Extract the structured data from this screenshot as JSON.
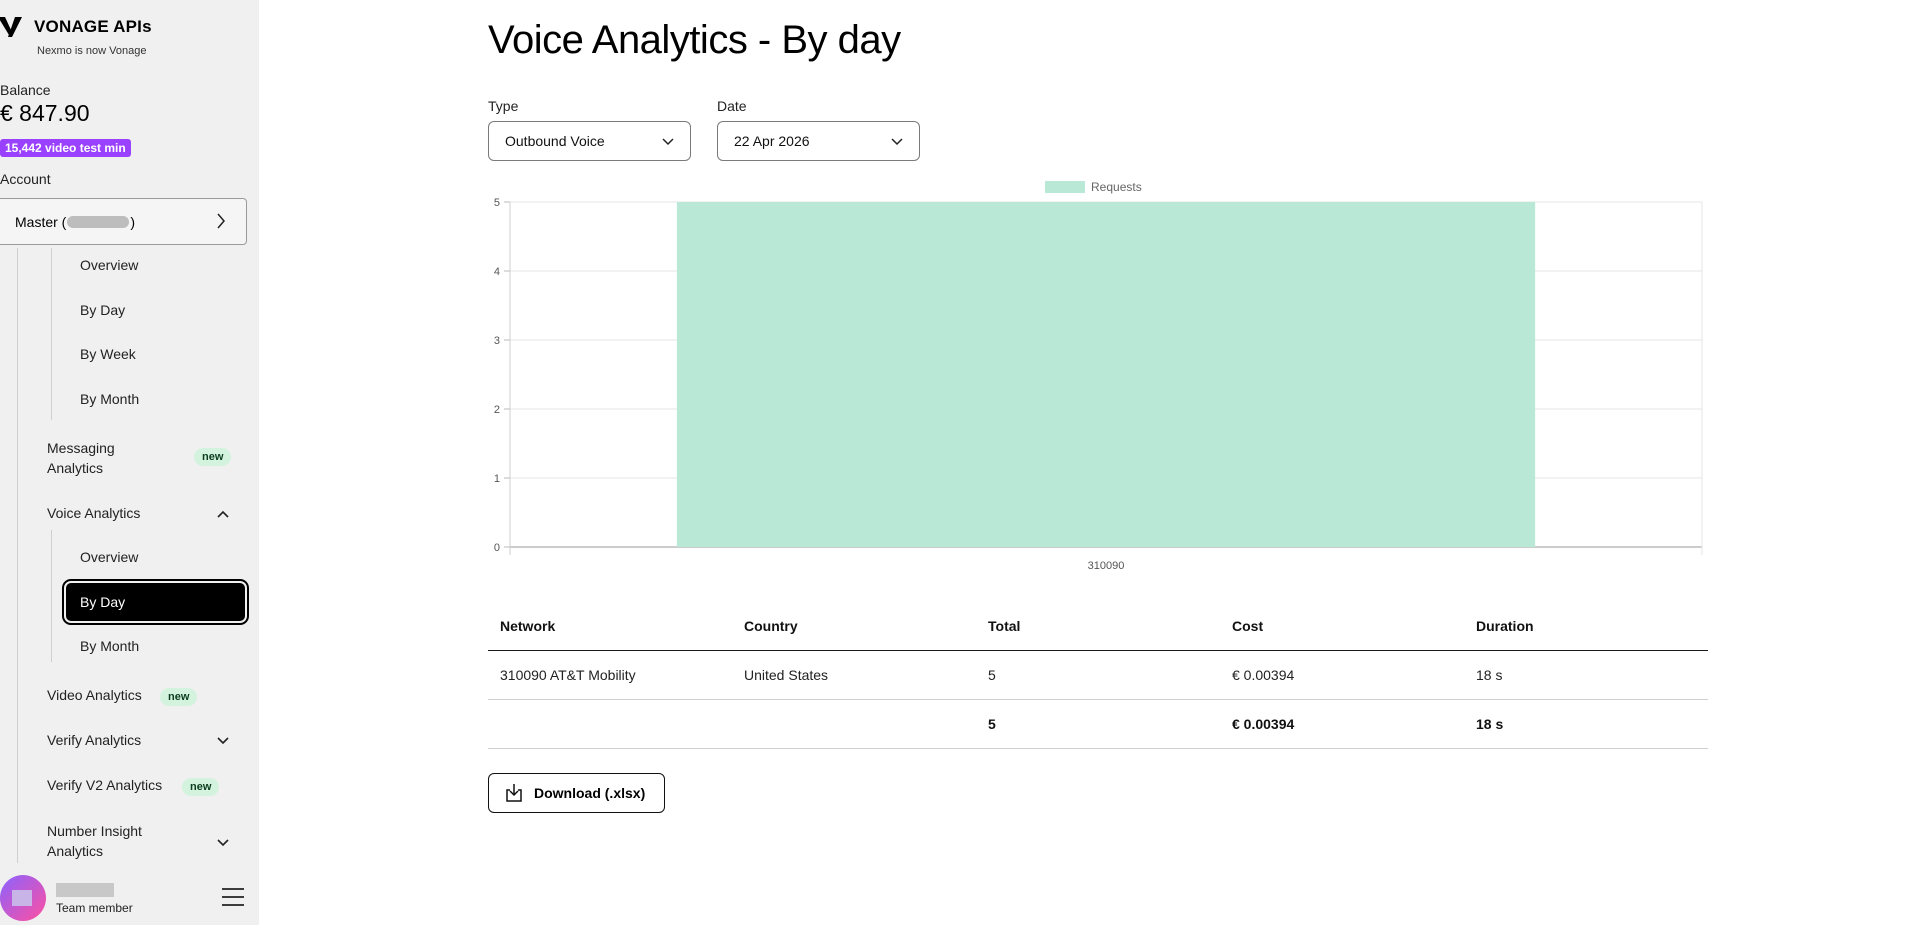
{
  "brand": {
    "name": "VONAGE APIs",
    "subtitle": "Nexmo is now Vonage"
  },
  "balance": {
    "label": "Balance",
    "value": "€ 847.90",
    "video_badge": "15,442 video test min"
  },
  "account": {
    "label": "Account",
    "value_prefix": "Master (",
    "value_suffix": ")"
  },
  "nav": {
    "sms_overview": "Overview",
    "sms_by_day": "By Day",
    "sms_by_week": "By Week",
    "sms_by_month": "By Month",
    "messaging": "Messaging Analytics",
    "voice": "Voice Analytics",
    "voice_overview": "Overview",
    "voice_by_day": "By Day",
    "voice_by_month": "By Month",
    "video": "Video Analytics",
    "verify": "Verify Analytics",
    "verify_v2": "Verify V2 Analytics",
    "number_insight": "Number Insight Analytics",
    "new_badge": "new"
  },
  "user": {
    "role": "Team member"
  },
  "page": {
    "title": "Voice Analytics - By day"
  },
  "filters": {
    "type_label": "Type",
    "type_value": "Outbound Voice",
    "date_label": "Date",
    "date_value": "22 Apr 2026"
  },
  "chart_data": {
    "type": "bar",
    "categories": [
      "310090"
    ],
    "series": [
      {
        "name": "Requests",
        "values": [
          5
        ]
      }
    ],
    "yticks": [
      "0",
      "1",
      "2",
      "3",
      "4",
      "5"
    ],
    "ylim": [
      0,
      5
    ],
    "legend": "top-center",
    "grid": true,
    "color": "#b9e8d6"
  },
  "table": {
    "headers": [
      "Network",
      "Country",
      "Total",
      "Cost",
      "Duration"
    ],
    "rows": [
      [
        "310090 AT&T Mobility",
        "United States",
        "5",
        "€ 0.00394",
        "18 s"
      ]
    ],
    "totals": [
      "",
      "",
      "5",
      "€ 0.00394",
      "18 s"
    ]
  },
  "download_label": "Download (.xlsx)",
  "colors": {
    "accent_purple": "#9941ff",
    "active_nav": "#000000",
    "new_badge_bg": "#d4f3df"
  }
}
